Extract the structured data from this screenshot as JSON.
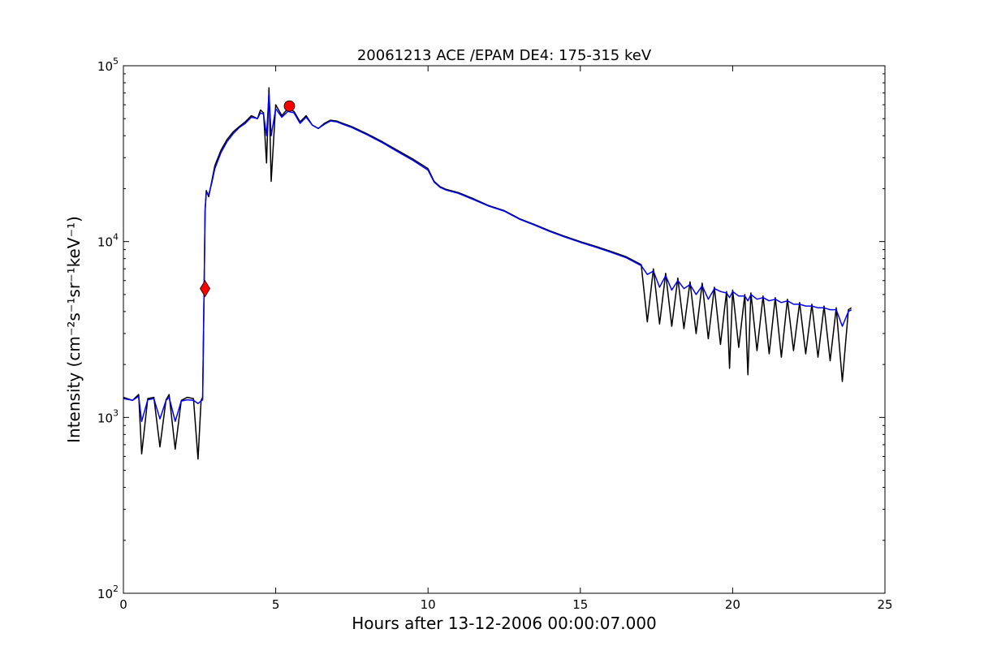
{
  "chart_data": {
    "type": "line",
    "title": "20061213 ACE /EPAM DE4: 175-315 keV",
    "xlabel": "Hours after 13-12-2006 00:00:07.000",
    "ylabel": "Intensity (cm⁻²s⁻¹sr⁻¹keV⁻¹)",
    "xlim": [
      0,
      25
    ],
    "ylim": [
      100,
      100000
    ],
    "yscale": "log",
    "grid": false,
    "x_ticks": [
      0,
      5,
      10,
      15,
      20,
      25
    ],
    "y_ticks": [
      {
        "base": "10",
        "exp": "2",
        "value": 100
      },
      {
        "base": "10",
        "exp": "3",
        "value": 1000
      },
      {
        "base": "10",
        "exp": "4",
        "value": 10000
      },
      {
        "base": "10",
        "exp": "5",
        "value": 100000
      }
    ],
    "series": [
      {
        "color": "#000000",
        "x": [
          0.0,
          0.3,
          0.5,
          0.6,
          0.8,
          1.0,
          1.2,
          1.4,
          1.5,
          1.7,
          1.9,
          2.1,
          2.3,
          2.45,
          2.55,
          2.6,
          2.65,
          2.68,
          2.72,
          2.8,
          2.9,
          3.0,
          3.2,
          3.4,
          3.6,
          3.8,
          4.0,
          4.2,
          4.4,
          4.5,
          4.6,
          4.7,
          4.78,
          4.85,
          5.0,
          5.2,
          5.4,
          5.6,
          5.8,
          6.0,
          6.2,
          6.4,
          6.6,
          6.8,
          7.0,
          7.2,
          7.5,
          8.0,
          8.5,
          9.0,
          9.5,
          10.0,
          10.2,
          10.4,
          10.6,
          11.0,
          11.5,
          12.0,
          12.5,
          13.0,
          13.5,
          14.0,
          14.5,
          15.0,
          15.5,
          16.0,
          16.5,
          17.0,
          17.2,
          17.4,
          17.6,
          17.8,
          18.0,
          18.2,
          18.4,
          18.6,
          18.8,
          19.0,
          19.2,
          19.4,
          19.6,
          19.8,
          19.9,
          20.0,
          20.2,
          20.4,
          20.5,
          20.6,
          20.8,
          21.0,
          21.2,
          21.4,
          21.6,
          21.8,
          22.0,
          22.2,
          22.4,
          22.6,
          22.8,
          23.0,
          23.2,
          23.4,
          23.6,
          23.8,
          23.9
        ],
        "y": [
          1300,
          1250,
          1350,
          620,
          1280,
          1300,
          680,
          1260,
          1350,
          660,
          1250,
          1300,
          1280,
          580,
          1250,
          1300,
          5400,
          15000,
          19500,
          18000,
          22000,
          27000,
          33000,
          38000,
          42000,
          45000,
          48000,
          52000,
          50000,
          56000,
          54000,
          28000,
          75000,
          22000,
          60000,
          52000,
          57000,
          55000,
          48000,
          52000,
          46000,
          44000,
          47000,
          49000,
          48500,
          47000,
          45000,
          41000,
          37000,
          33000,
          29500,
          26000,
          22000,
          20500,
          19800,
          19000,
          17500,
          16000,
          15000,
          13500,
          12500,
          11500,
          10700,
          10000,
          9400,
          8800,
          8200,
          7400,
          3500,
          7000,
          3400,
          6600,
          3300,
          6200,
          3200,
          5900,
          3000,
          5800,
          2800,
          5500,
          2600,
          5200,
          1900,
          5300,
          2500,
          5000,
          1750,
          5100,
          2400,
          4900,
          2300,
          4800,
          2200,
          4700,
          2400,
          4500,
          2300,
          4400,
          2200,
          4300,
          2100,
          4200,
          1600,
          4100,
          4200
        ]
      },
      {
        "color": "#0000ff",
        "x": [
          0.0,
          0.3,
          0.5,
          0.6,
          0.8,
          1.0,
          1.2,
          1.4,
          1.5,
          1.7,
          1.9,
          2.1,
          2.3,
          2.45,
          2.55,
          2.6,
          2.65,
          2.68,
          2.72,
          2.8,
          2.9,
          3.0,
          3.2,
          3.4,
          3.6,
          3.8,
          4.0,
          4.2,
          4.4,
          4.5,
          4.6,
          4.7,
          4.78,
          4.85,
          5.0,
          5.2,
          5.4,
          5.6,
          5.8,
          6.0,
          6.2,
          6.4,
          6.6,
          6.8,
          7.0,
          7.2,
          7.5,
          8.0,
          8.5,
          9.0,
          9.5,
          10.0,
          10.2,
          10.4,
          10.6,
          11.0,
          11.5,
          12.0,
          12.5,
          13.0,
          13.5,
          14.0,
          14.5,
          15.0,
          15.5,
          16.0,
          16.5,
          17.0,
          17.2,
          17.4,
          17.6,
          17.8,
          18.0,
          18.2,
          18.4,
          18.6,
          18.8,
          19.0,
          19.2,
          19.4,
          19.6,
          19.8,
          19.9,
          20.0,
          20.2,
          20.4,
          20.5,
          20.6,
          20.8,
          21.0,
          21.2,
          21.4,
          21.6,
          21.8,
          22.0,
          22.2,
          22.4,
          22.6,
          22.8,
          23.0,
          23.2,
          23.4,
          23.6,
          23.8,
          23.9
        ],
        "y": [
          1280,
          1250,
          1320,
          950,
          1260,
          1280,
          980,
          1250,
          1300,
          950,
          1240,
          1260,
          1250,
          1200,
          1240,
          1260,
          5400,
          15000,
          19000,
          18500,
          21500,
          26000,
          32000,
          37000,
          41000,
          44500,
          47000,
          51000,
          50000,
          54000,
          53000,
          40000,
          70000,
          40000,
          57000,
          51000,
          55000,
          54000,
          47000,
          51000,
          46000,
          44000,
          46500,
          48500,
          48000,
          46500,
          44500,
          40500,
          36500,
          32500,
          29000,
          25500,
          21800,
          20300,
          19600,
          18800,
          17300,
          15900,
          14900,
          13400,
          12400,
          11400,
          10600,
          9900,
          9300,
          8700,
          8100,
          7300,
          6500,
          6800,
          5500,
          6400,
          5300,
          6000,
          5400,
          5700,
          5000,
          5600,
          4700,
          5400,
          5200,
          5100,
          4800,
          5200,
          4900,
          4900,
          4600,
          5000,
          4700,
          4800,
          4600,
          4700,
          4500,
          4600,
          4400,
          4400,
          4300,
          4300,
          4200,
          4200,
          4100,
          4100,
          3300,
          4000,
          4100
        ]
      }
    ],
    "markers": [
      {
        "shape": "diamond",
        "color": "#ff0000",
        "x": 2.68,
        "y": 5400
      },
      {
        "shape": "circle",
        "color": "#ff0000",
        "x": 5.45,
        "y": 59000
      }
    ]
  }
}
